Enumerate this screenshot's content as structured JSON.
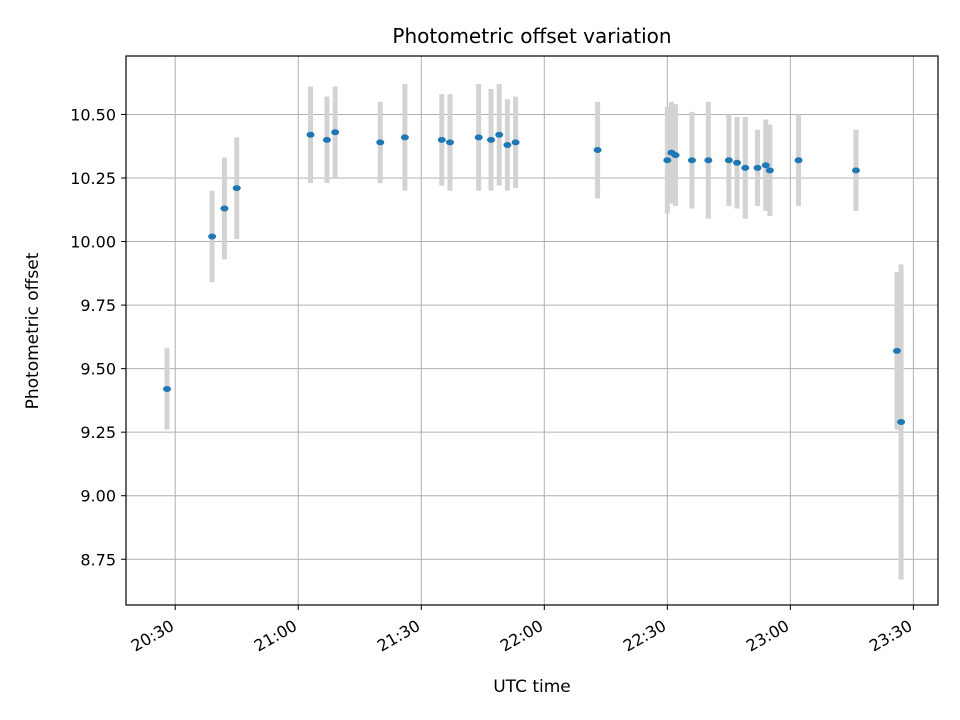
{
  "chart_data": {
    "type": "scatter",
    "title": "Photometric offset variation",
    "xlabel": "UTC time",
    "ylabel": "Photometric offset",
    "x_tick_labels": [
      "20:30",
      "21:00",
      "21:30",
      "22:00",
      "22:30",
      "23:00",
      "23:30"
    ],
    "y_tick_labels": [
      "8.75",
      "9.00",
      "9.25",
      "9.50",
      "9.75",
      "10.00",
      "10.25",
      "10.50"
    ],
    "y_ticks": [
      8.75,
      9.0,
      9.25,
      9.5,
      9.75,
      10.0,
      10.25,
      10.5
    ],
    "xlim": [
      "20:18",
      "23:36"
    ],
    "ylim": [
      8.57,
      10.73
    ],
    "grid": true,
    "marker_color": "#1f77b4",
    "errorbar_color": "#d3d3d3",
    "points": [
      {
        "x": "20:28",
        "y": 9.42,
        "err": 0.16
      },
      {
        "x": "20:39",
        "y": 10.02,
        "err": 0.18
      },
      {
        "x": "20:42",
        "y": 10.13,
        "err": 0.2
      },
      {
        "x": "20:45",
        "y": 10.21,
        "err": 0.2
      },
      {
        "x": "21:03",
        "y": 10.42,
        "err": 0.19
      },
      {
        "x": "21:07",
        "y": 10.4,
        "err": 0.17
      },
      {
        "x": "21:09",
        "y": 10.43,
        "err": 0.18
      },
      {
        "x": "21:20",
        "y": 10.39,
        "err": 0.16
      },
      {
        "x": "21:26",
        "y": 10.41,
        "err": 0.21
      },
      {
        "x": "21:35",
        "y": 10.4,
        "err": 0.18
      },
      {
        "x": "21:37",
        "y": 10.39,
        "err": 0.19
      },
      {
        "x": "21:44",
        "y": 10.41,
        "err": 0.21
      },
      {
        "x": "21:47",
        "y": 10.4,
        "err": 0.2
      },
      {
        "x": "21:49",
        "y": 10.42,
        "err": 0.2
      },
      {
        "x": "21:51",
        "y": 10.38,
        "err": 0.18
      },
      {
        "x": "21:53",
        "y": 10.39,
        "err": 0.18
      },
      {
        "x": "22:13",
        "y": 10.36,
        "err": 0.19
      },
      {
        "x": "22:30",
        "y": 10.32,
        "err": 0.21
      },
      {
        "x": "22:31",
        "y": 10.35,
        "err": 0.2
      },
      {
        "x": "22:32",
        "y": 10.34,
        "err": 0.2
      },
      {
        "x": "22:36",
        "y": 10.32,
        "err": 0.19
      },
      {
        "x": "22:40",
        "y": 10.32,
        "err": 0.23
      },
      {
        "x": "22:45",
        "y": 10.32,
        "err": 0.18
      },
      {
        "x": "22:47",
        "y": 10.31,
        "err": 0.18
      },
      {
        "x": "22:49",
        "y": 10.29,
        "err": 0.2
      },
      {
        "x": "22:52",
        "y": 10.29,
        "err": 0.15
      },
      {
        "x": "22:54",
        "y": 10.3,
        "err": 0.18
      },
      {
        "x": "22:55",
        "y": 10.28,
        "err": 0.18
      },
      {
        "x": "23:02",
        "y": 10.32,
        "err": 0.18
      },
      {
        "x": "23:16",
        "y": 10.28,
        "err": 0.16
      },
      {
        "x": "23:26",
        "y": 9.57,
        "err": 0.31
      },
      {
        "x": "23:27",
        "y": 9.29,
        "err": 0.62
      }
    ]
  }
}
